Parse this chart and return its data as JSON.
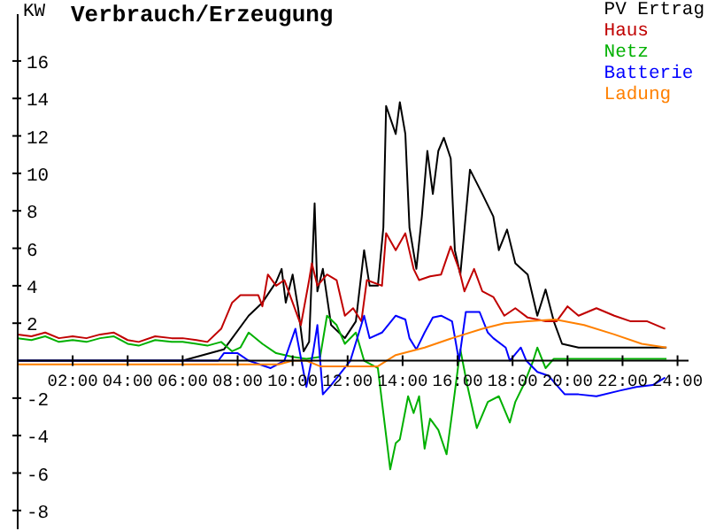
{
  "chart_data": {
    "type": "line",
    "title": "Verbrauch/Erzeugung",
    "ylabel": "KW",
    "xlim": [
      0,
      24.4
    ],
    "ylim": [
      -9,
      18.5
    ],
    "xticks": [
      {
        "value": 2,
        "label": "02:00"
      },
      {
        "value": 4,
        "label": "04:00"
      },
      {
        "value": 6,
        "label": "06:00"
      },
      {
        "value": 8,
        "label": "08:00"
      },
      {
        "value": 10,
        "label": "10:00"
      },
      {
        "value": 12,
        "label": "12:00"
      },
      {
        "value": 14,
        "label": "14:00"
      },
      {
        "value": 16,
        "label": "16:00"
      },
      {
        "value": 18,
        "label": "18:00"
      },
      {
        "value": 20,
        "label": "20:00"
      },
      {
        "value": 22,
        "label": "22:00"
      },
      {
        "value": 24,
        "label": "24:00"
      }
    ],
    "yticks": [
      -8,
      -6,
      -4,
      -2,
      2,
      4,
      6,
      8,
      10,
      12,
      14,
      16
    ],
    "grid": false,
    "legend": "top right",
    "marker": "none",
    "series": [
      {
        "name": "PV Ertrag",
        "color": "#000000",
        "x": [
          0,
          6,
          7.5,
          8.4,
          8.9,
          9.4,
          9.6,
          9.75,
          10,
          10.2,
          10.4,
          10.6,
          10.8,
          10.9,
          11.1,
          11.4,
          11.9,
          12.3,
          12.6,
          12.8,
          13.1,
          13.3,
          13.4,
          13.75,
          13.9,
          14.1,
          14.25,
          14.5,
          14.7,
          14.9,
          15.1,
          15.3,
          15.5,
          15.75,
          15.9,
          16.1,
          16.45,
          16.9,
          17.3,
          17.5,
          17.8,
          18.1,
          18.55,
          18.9,
          19.2,
          19.5,
          19.8,
          20.4,
          23.6
        ],
        "values": [
          0,
          0,
          0.6,
          2.4,
          3.1,
          4.2,
          4.9,
          3.1,
          4.6,
          2.8,
          0.5,
          1,
          8.4,
          3.7,
          4.9,
          1.9,
          1.2,
          2.1,
          5.9,
          4,
          4,
          7.1,
          13.6,
          12.1,
          13.8,
          12.1,
          7.1,
          4.9,
          7.7,
          11.2,
          8.9,
          11.2,
          11.9,
          10.8,
          5.9,
          4.6,
          10.2,
          8.9,
          7.7,
          5.9,
          7,
          5.2,
          4.6,
          2.4,
          3.8,
          2.1,
          0.9,
          0.7,
          0.7
        ]
      },
      {
        "name": "Haus",
        "color": "#c00000",
        "x": [
          0,
          0.5,
          1,
          1.5,
          2,
          2.5,
          3,
          3.5,
          4,
          4.4,
          5,
          5.6,
          6,
          6.5,
          6.9,
          7.4,
          7.8,
          8.1,
          8.75,
          8.9,
          9.1,
          9.4,
          9.7,
          10,
          10.3,
          10.6,
          10.7,
          10.9,
          11.25,
          11.6,
          11.9,
          12.2,
          12.5,
          12.7,
          13.25,
          13.4,
          13.75,
          14.1,
          14.4,
          14.6,
          15,
          15.4,
          15.75,
          16.05,
          16.25,
          16.6,
          16.9,
          17.3,
          17.7,
          18.1,
          18.55,
          19.2,
          19.6,
          20,
          20.4,
          21.05,
          21.7,
          22.3,
          22.9,
          23.55
        ],
        "values": [
          1.4,
          1.3,
          1.5,
          1.2,
          1.3,
          1.2,
          1.4,
          1.5,
          1.1,
          1,
          1.3,
          1.2,
          1.2,
          1.1,
          1,
          1.7,
          3.1,
          3.5,
          3.5,
          2.9,
          4.6,
          4,
          4.3,
          3.1,
          1.9,
          4.3,
          5.2,
          4,
          4.6,
          4.3,
          2.4,
          2.8,
          2.1,
          4.3,
          4,
          6.8,
          5.9,
          6.8,
          4.9,
          4.3,
          4.5,
          4.6,
          6.1,
          4.9,
          3.7,
          4.9,
          3.7,
          3.4,
          2.4,
          2.8,
          2.3,
          2.1,
          2.1,
          2.9,
          2.4,
          2.8,
          2.4,
          2.1,
          2.1,
          1.7
        ]
      },
      {
        "name": "Netz",
        "color": "#00b000",
        "x": [
          0,
          0.5,
          1,
          1.5,
          2,
          2.5,
          3,
          3.5,
          4,
          4.4,
          5,
          5.6,
          6,
          6.5,
          6.9,
          7.4,
          7.8,
          8.1,
          8.4,
          8.9,
          9.4,
          10,
          10.5,
          11,
          11.25,
          11.6,
          11.9,
          12.3,
          12.6,
          13.1,
          13.3,
          13.55,
          13.75,
          13.9,
          14.2,
          14.4,
          14.6,
          14.8,
          15,
          15.3,
          15.6,
          15.8,
          16.1,
          16.35,
          16.7,
          17.1,
          17.5,
          17.9,
          18.1,
          18.4,
          18.75,
          18.9,
          19.2,
          19.5,
          23.6
        ],
        "values": [
          1.2,
          1.1,
          1.3,
          1,
          1.1,
          1,
          1.2,
          1.3,
          0.9,
          0.8,
          1.1,
          1,
          1,
          0.9,
          0.8,
          1,
          0.5,
          0.7,
          1.5,
          0.9,
          0.4,
          0.2,
          0.1,
          0.2,
          2.4,
          1.9,
          0.9,
          1.5,
          0,
          -0.4,
          -2.8,
          -5.8,
          -4.4,
          -4.2,
          -1.9,
          -2.8,
          -1.9,
          -4.7,
          -3.1,
          -3.7,
          -5,
          -2.8,
          0.6,
          -1.3,
          -3.6,
          -2.2,
          -1.9,
          -3.3,
          -2.2,
          -1.3,
          0,
          0.7,
          -0.4,
          0.1,
          0.1
        ]
      },
      {
        "name": "Batterie",
        "color": "#0000ff",
        "x": [
          0,
          7.3,
          7.5,
          8,
          8.4,
          9.2,
          9.7,
          10.1,
          10.5,
          10.75,
          10.9,
          11.1,
          11.4,
          12.1,
          12.6,
          12.8,
          13.25,
          13.75,
          14.1,
          14.25,
          14.5,
          14.8,
          15.1,
          15.4,
          15.8,
          16.05,
          16.3,
          16.8,
          17.1,
          17.3,
          17.75,
          17.9,
          18.3,
          18.5,
          18.9,
          19.3,
          19.9,
          20.4,
          21.05,
          21.9,
          22.5,
          23.1,
          23.55
        ],
        "values": [
          0,
          0,
          0.4,
          0.4,
          0,
          -0.4,
          0,
          1.7,
          -1.4,
          0.5,
          1.9,
          -1.8,
          -1.3,
          0,
          2.4,
          1.2,
          1.5,
          2.4,
          2.2,
          1.2,
          0.6,
          1.5,
          2.3,
          2.4,
          2.1,
          0,
          2.6,
          2.6,
          1.5,
          1.2,
          0.7,
          0,
          0.7,
          0,
          -0.6,
          -0.8,
          -1.8,
          -1.8,
          -1.9,
          -1.6,
          -1.4,
          -1.3,
          -0.9
        ]
      },
      {
        "name": "Ladung",
        "color": "#ff8000",
        "x": [
          0,
          9.5,
          10,
          10.5,
          11,
          13.1,
          13.75,
          14.8,
          15.8,
          16.9,
          17.7,
          18.55,
          19.55,
          20.6,
          21.7,
          22.7,
          23.6
        ],
        "values": [
          -0.2,
          -0.2,
          0,
          0,
          -0.3,
          -0.3,
          0.3,
          0.7,
          1.2,
          1.7,
          2,
          2.1,
          2.2,
          1.9,
          1.4,
          0.9,
          0.7
        ]
      }
    ]
  }
}
